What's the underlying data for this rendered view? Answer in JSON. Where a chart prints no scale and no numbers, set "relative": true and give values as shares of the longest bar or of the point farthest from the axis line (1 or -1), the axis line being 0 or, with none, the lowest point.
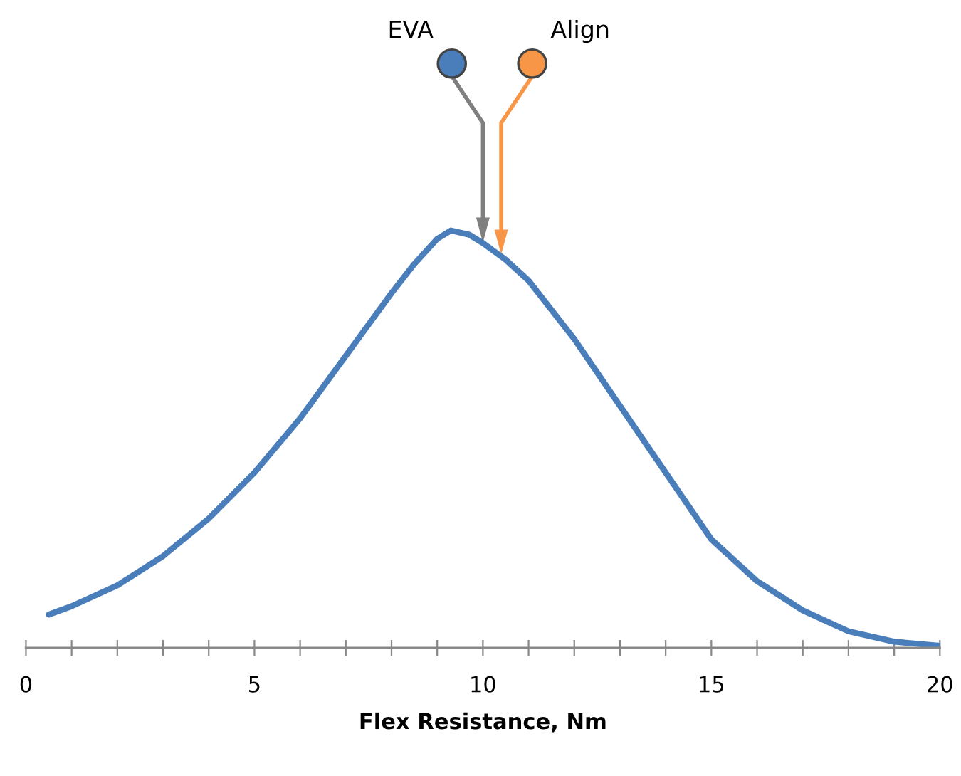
{
  "chart_data": {
    "type": "line",
    "relative": true,
    "xlabel": "Flex Resistance, Nm",
    "series": [
      {
        "color": "#4a7ebb",
        "x": [
          0.5,
          1,
          2,
          3,
          4,
          5,
          6,
          7,
          8,
          8.5,
          9,
          9.3,
          9.7,
          10,
          10.5,
          11,
          12,
          13,
          14,
          15,
          16,
          17,
          18,
          19,
          20
        ],
        "values": [
          0.08,
          0.1,
          0.15,
          0.22,
          0.31,
          0.42,
          0.55,
          0.7,
          0.85,
          0.92,
          0.98,
          1,
          0.99,
          0.97,
          0.93,
          0.88,
          0.74,
          0.58,
          0.42,
          0.26,
          0.16,
          0.09,
          0.04,
          0.015,
          0.005
        ]
      }
    ],
    "xlim": [
      0,
      20
    ],
    "xticks": [
      0,
      {
        "value": 1,
        "label": null
      },
      {
        "value": 2,
        "label": null
      },
      {
        "value": 3,
        "label": null
      },
      {
        "value": 4,
        "label": null
      },
      5,
      {
        "value": 6,
        "label": null
      },
      {
        "value": 7,
        "label": null
      },
      {
        "value": 8,
        "label": null
      },
      {
        "value": 9,
        "label": null
      },
      10,
      {
        "value": 11,
        "label": null
      },
      {
        "value": 12,
        "label": null
      },
      {
        "value": 13,
        "label": null
      },
      {
        "value": 14,
        "label": null
      },
      15,
      {
        "value": 16,
        "label": null
      },
      {
        "value": 17,
        "label": null
      },
      {
        "value": 18,
        "label": null
      },
      {
        "value": 19,
        "label": null
      },
      20
    ],
    "annotations": [
      "EVA",
      "Align"
    ],
    "tick_labels": "x",
    "grid": false,
    "legend": false
  }
}
